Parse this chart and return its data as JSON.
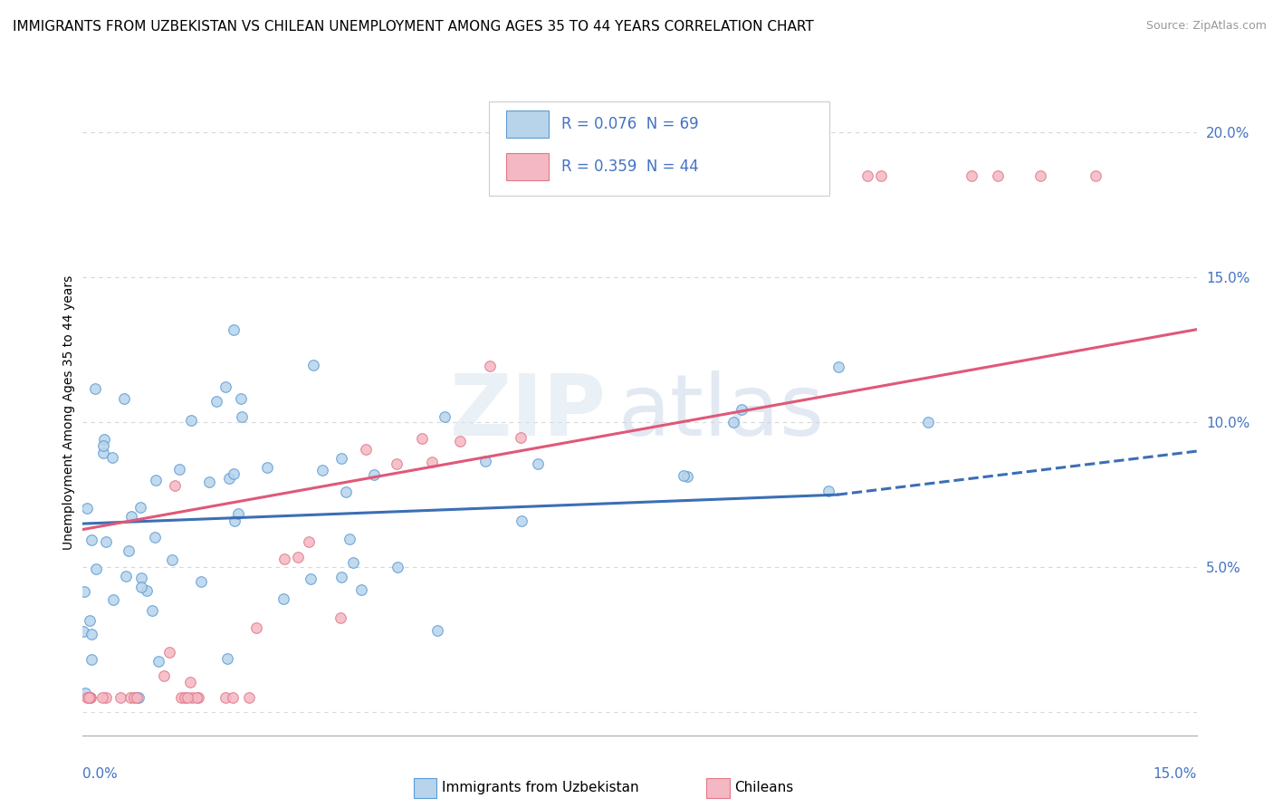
{
  "title": "IMMIGRANTS FROM UZBEKISTAN VS CHILEAN UNEMPLOYMENT AMONG AGES 35 TO 44 YEARS CORRELATION CHART",
  "source": "Source: ZipAtlas.com",
  "ylabel": "Unemployment Among Ages 35 to 44 years",
  "xlim": [
    0,
    0.155
  ],
  "ylim": [
    -0.008,
    0.215
  ],
  "yticks": [
    0.0,
    0.05,
    0.1,
    0.15,
    0.2
  ],
  "ytick_labels": [
    "",
    "5.0%",
    "10.0%",
    "15.0%",
    "20.0%"
  ],
  "xtick_left": "0.0%",
  "xtick_right": "15.0%",
  "legend_r1": "R = 0.076",
  "legend_n1": "N = 69",
  "legend_r2": "R = 0.359",
  "legend_n2": "N = 44",
  "blue_face": "#b8d4eb",
  "blue_edge": "#5b9bd5",
  "pink_face": "#f4b8c4",
  "pink_edge": "#e07888",
  "blue_trend_solid": [
    0.0,
    0.105,
    0.065,
    0.075
  ],
  "blue_trend_dash": [
    0.105,
    0.155,
    0.075,
    0.09
  ],
  "pink_trend": [
    0.0,
    0.155,
    0.063,
    0.132
  ],
  "watermark_zip": "ZIP",
  "watermark_atlas": "atlas",
  "label1": "Immigrants from Uzbekistan",
  "label2": "Chileans",
  "text_color": "#4472c4",
  "grid_color": "#d8d8d8",
  "title_fontsize": 11,
  "tick_fontsize": 11
}
